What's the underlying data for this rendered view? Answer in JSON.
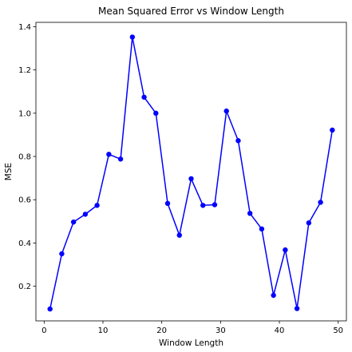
{
  "chart_data": {
    "type": "line",
    "title": "Mean Squared Error vs Window Length",
    "xlabel": "Window Length",
    "ylabel": "MSE",
    "xlim": [
      -1.4,
      51.4
    ],
    "ylim": [
      0.04,
      1.42
    ],
    "xticks": [
      0,
      10,
      20,
      30,
      40,
      50
    ],
    "yticks": [
      0.2,
      0.4,
      0.6,
      0.8,
      1.0,
      1.2,
      1.4
    ],
    "ytick_labels": [
      "0.2",
      "0.4",
      "0.6",
      "0.8",
      "1.0",
      "1.2",
      "1.4"
    ],
    "grid": false,
    "legend": "none",
    "series": [
      {
        "color": "#0000ff",
        "marker": "circle",
        "x": [
          1,
          3,
          5,
          7,
          9,
          11,
          13,
          15,
          17,
          19,
          21,
          23,
          25,
          27,
          29,
          31,
          33,
          35,
          37,
          39,
          41,
          43,
          45,
          47,
          49
        ],
        "y": [
          0.095,
          0.35,
          0.497,
          0.533,
          0.574,
          0.81,
          0.788,
          1.352,
          1.074,
          1.0,
          0.583,
          0.436,
          0.697,
          0.574,
          0.577,
          1.01,
          0.873,
          0.537,
          0.465,
          0.158,
          0.368,
          0.097,
          0.493,
          0.588,
          0.922
        ]
      }
    ]
  }
}
